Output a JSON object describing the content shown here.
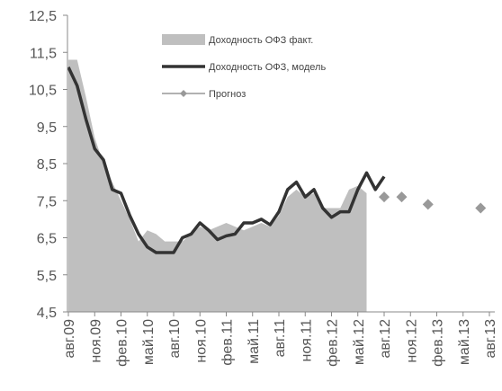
{
  "chart_data": {
    "type": "line",
    "categories": [
      "авг.09",
      null,
      null,
      "ноя.09",
      null,
      null,
      "фев.10",
      null,
      null,
      "май.10",
      null,
      null,
      "авг.10",
      null,
      null,
      "ноя.10",
      null,
      null,
      "фев.11",
      null,
      null,
      "май.11",
      null,
      null,
      "авг.11",
      null,
      null,
      "ноя.11",
      null,
      null,
      "фев.12",
      null,
      null,
      "май.12",
      null,
      null,
      "авг.12",
      null,
      null,
      "ноя.12",
      null,
      null,
      "фев.13",
      null,
      null,
      "май.13",
      null,
      null,
      "авг.13"
    ],
    "series": [
      {
        "name": "Доходность ОФЗ факт.",
        "kind": "area",
        "color": "#bfbfbf",
        "values": [
          11.3,
          11.3,
          10.3,
          9.2,
          8.5,
          8.0,
          7.5,
          7.0,
          6.4,
          6.7,
          6.6,
          6.4,
          6.4,
          6.4,
          6.6,
          6.8,
          6.7,
          6.8,
          6.9,
          6.8,
          6.7,
          6.8,
          6.9,
          6.8,
          7.1,
          7.6,
          7.8,
          7.6,
          7.7,
          7.3,
          7.3,
          7.3,
          7.8,
          7.9,
          7.7,
          null,
          null,
          null,
          null,
          null,
          null,
          null,
          null,
          null,
          null,
          null,
          null,
          null,
          null
        ]
      },
      {
        "name": "Доходность ОФЗ, модель",
        "kind": "line",
        "color": "#333333",
        "values": [
          11.1,
          10.6,
          9.7,
          8.9,
          8.6,
          7.8,
          7.7,
          7.1,
          6.6,
          6.25,
          6.1,
          6.1,
          6.1,
          6.5,
          6.6,
          6.9,
          6.7,
          6.45,
          6.55,
          6.6,
          6.9,
          6.9,
          7.0,
          6.85,
          7.2,
          7.8,
          8.0,
          7.6,
          7.8,
          7.3,
          7.05,
          7.2,
          7.2,
          7.8,
          8.25,
          7.8,
          8.15,
          null,
          null,
          null,
          null,
          null,
          null,
          null,
          null,
          null,
          null,
          null,
          null
        ]
      },
      {
        "name": "Прогноз",
        "kind": "points",
        "color": "#999999",
        "values": [
          null,
          null,
          null,
          null,
          null,
          null,
          null,
          null,
          null,
          null,
          null,
          null,
          null,
          null,
          null,
          null,
          null,
          null,
          null,
          null,
          null,
          null,
          null,
          null,
          null,
          null,
          null,
          null,
          null,
          null,
          null,
          null,
          null,
          null,
          null,
          null,
          7.6,
          null,
          7.6,
          null,
          null,
          7.4,
          null,
          null,
          null,
          null,
          null,
          7.3,
          null
        ]
      }
    ],
    "ylim": [
      4.5,
      12.5
    ],
    "yticks": [
      {
        "value": 4.5,
        "label": "4,5"
      },
      {
        "value": 5.5,
        "label": "5,5"
      },
      {
        "value": 6.5,
        "label": "6,5"
      },
      {
        "value": 7.5,
        "label": "7,5"
      },
      {
        "value": 8.5,
        "label": "8,5"
      },
      {
        "value": 9.5,
        "label": "9,5"
      },
      {
        "value": 10.5,
        "label": "10,5"
      },
      {
        "value": 11.5,
        "label": "11,5"
      },
      {
        "value": 12.5,
        "label": "12,5"
      }
    ],
    "grid": false,
    "legend": "top"
  }
}
